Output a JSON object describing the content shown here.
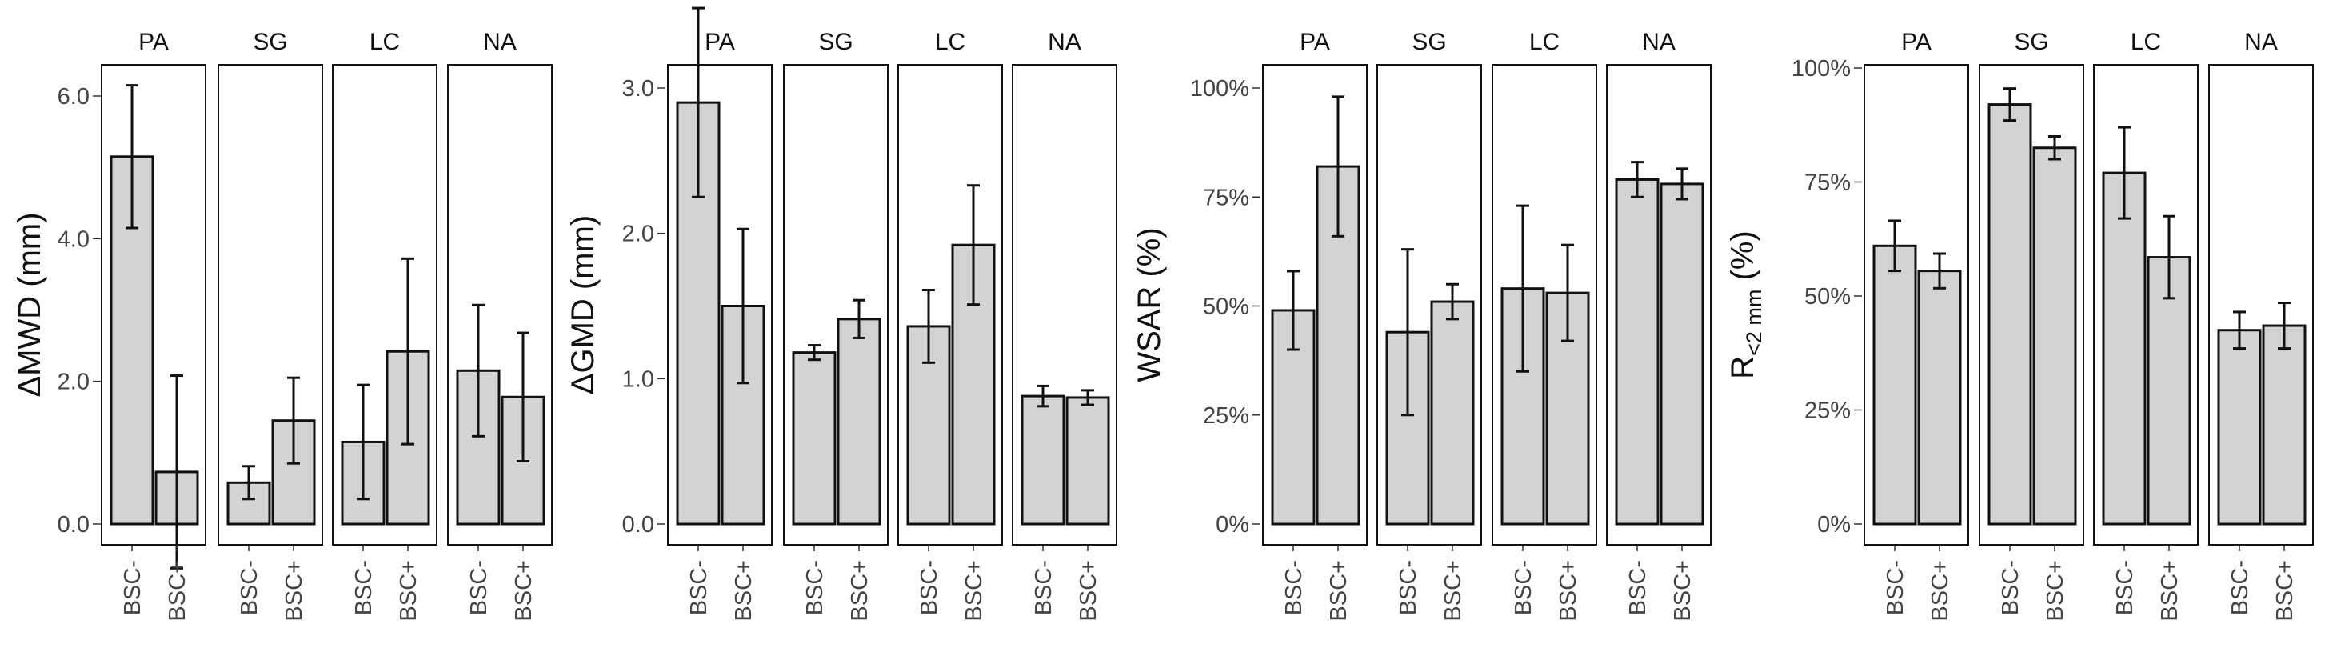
{
  "chart_data": [
    {
      "type": "bar",
      "ylabel": "ΔMWD (mm)",
      "ylim": [
        0,
        6.0
      ],
      "yticks": [
        0,
        2,
        4,
        6
      ],
      "ytick_labels": [
        "0.0",
        "2.0",
        "4.0",
        "6.0"
      ],
      "panels": [
        "PA",
        "SG",
        "LC",
        "NA"
      ],
      "categories": [
        "BSC-",
        "BSC+"
      ],
      "values": [
        [
          5.15,
          0.73
        ],
        [
          0.58,
          1.45
        ],
        [
          1.15,
          2.42
        ],
        [
          2.15,
          1.78
        ]
      ],
      "errors": [
        [
          1.0,
          1.35
        ],
        [
          0.23,
          0.6
        ],
        [
          0.8,
          1.3
        ],
        [
          0.92,
          0.9
        ]
      ]
    },
    {
      "type": "bar",
      "ylabel": "ΔGMD (mm)",
      "ylim": [
        0,
        3.5
      ],
      "yticks": [
        0,
        1,
        2,
        3
      ],
      "ytick_labels": [
        "0.0",
        "1.0",
        "2.0",
        "3.0"
      ],
      "panels": [
        "PA",
        "SG",
        "LC",
        "NA"
      ],
      "categories": [
        "BSC-",
        "BSC+"
      ],
      "values": [
        [
          2.9,
          1.5
        ],
        [
          1.18,
          1.41
        ],
        [
          1.36,
          1.92
        ],
        [
          0.88,
          0.87
        ]
      ],
      "errors": [
        [
          0.65,
          0.53
        ],
        [
          0.05,
          0.13
        ],
        [
          0.25,
          0.41
        ],
        [
          0.07,
          0.05
        ]
      ]
    },
    {
      "type": "bar",
      "ylabel": "WSAR (%)",
      "ylim": [
        0,
        100
      ],
      "yticks": [
        0,
        25,
        50,
        75,
        100
      ],
      "ytick_labels": [
        "0%",
        "25%",
        "50%",
        "75%",
        "100%"
      ],
      "panels": [
        "PA",
        "SG",
        "LC",
        "NA"
      ],
      "categories": [
        "BSC-",
        "BSC+"
      ],
      "values": [
        [
          49,
          82
        ],
        [
          44,
          51
        ],
        [
          54,
          53
        ],
        [
          79,
          78
        ]
      ],
      "errors": [
        [
          9,
          16
        ],
        [
          19,
          4
        ],
        [
          19,
          11
        ],
        [
          4,
          3.5
        ]
      ]
    },
    {
      "type": "bar",
      "ylabel": "R",
      "ylabel_sub": "<2 mm",
      "ylabel_suffix": " (%)",
      "ylim": [
        0,
        100
      ],
      "yticks": [
        0,
        25,
        50,
        75,
        100
      ],
      "ytick_labels": [
        "0%",
        "25%",
        "50%",
        "75%",
        "100%"
      ],
      "panels": [
        "PA",
        "SG",
        "LC",
        "NA"
      ],
      "categories": [
        "BSC-",
        "BSC+"
      ],
      "values": [
        [
          61,
          55.5
        ],
        [
          92,
          82.5
        ],
        [
          77,
          58.5
        ],
        [
          42.5,
          43.5
        ]
      ],
      "errors": [
        [
          5.5,
          3.8
        ],
        [
          3.5,
          2.5
        ],
        [
          10,
          9
        ],
        [
          4,
          5
        ]
      ]
    }
  ]
}
